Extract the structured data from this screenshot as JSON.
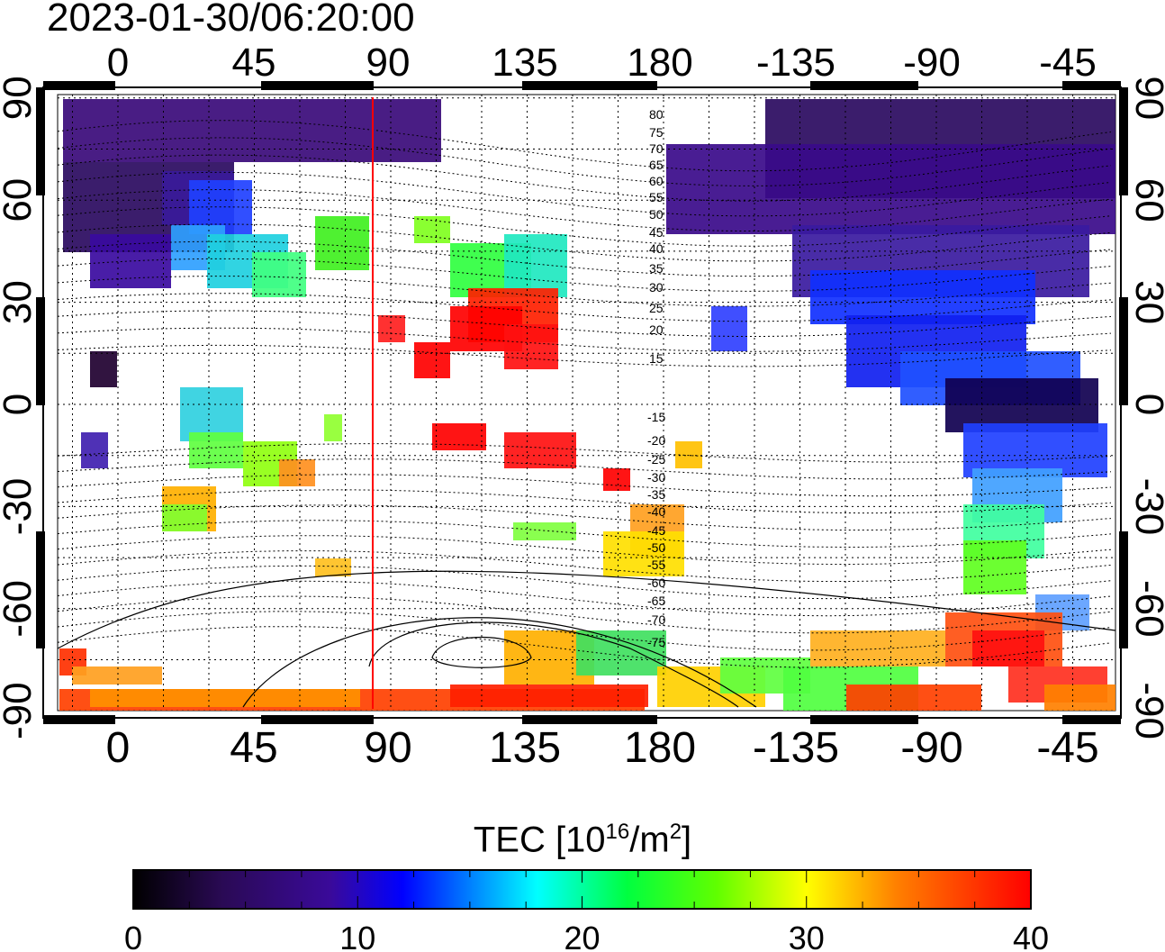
{
  "title": "2023-01-30/06:20:00",
  "map": {
    "top_lon_labels": [
      "0",
      "45",
      "90",
      "135",
      "180",
      "-135",
      "-90",
      "-45"
    ],
    "bottom_lon_labels": [
      "0",
      "45",
      "90",
      "135",
      "180",
      "-135",
      "-90",
      "-45"
    ],
    "left_lat_labels": [
      "90",
      "60",
      "30",
      "0",
      "-30",
      "-60",
      "-90"
    ],
    "right_lat_labels": [
      "90",
      "60",
      "30",
      "0",
      "-30",
      "-60",
      "-90"
    ],
    "contour_labels_north": [
      "80",
      "75",
      "70",
      "65",
      "60",
      "55",
      "50",
      "45",
      "40",
      "35",
      "30",
      "25",
      "20",
      "15"
    ],
    "contour_labels_south": [
      "-15",
      "-20",
      "-25",
      "-30",
      "-35",
      "-40",
      "-45",
      "-50",
      "-55",
      "-60",
      "-65",
      "-70",
      "-75"
    ],
    "terminator_color": "#ff0000",
    "grid": "dotted"
  },
  "colorbar": {
    "title_main": "TEC  [10",
    "title_sup1": "16",
    "title_mid": "/m",
    "title_sup2": "2",
    "title_end": "]",
    "tick_labels": [
      "0",
      "10",
      "20",
      "30",
      "40"
    ],
    "min": 0,
    "max": 40,
    "colors": [
      "#000000",
      "#3a0a6e",
      "#0000ff",
      "#00ffff",
      "#00ff00",
      "#ffff00",
      "#ff7f00",
      "#ff0000"
    ]
  }
}
